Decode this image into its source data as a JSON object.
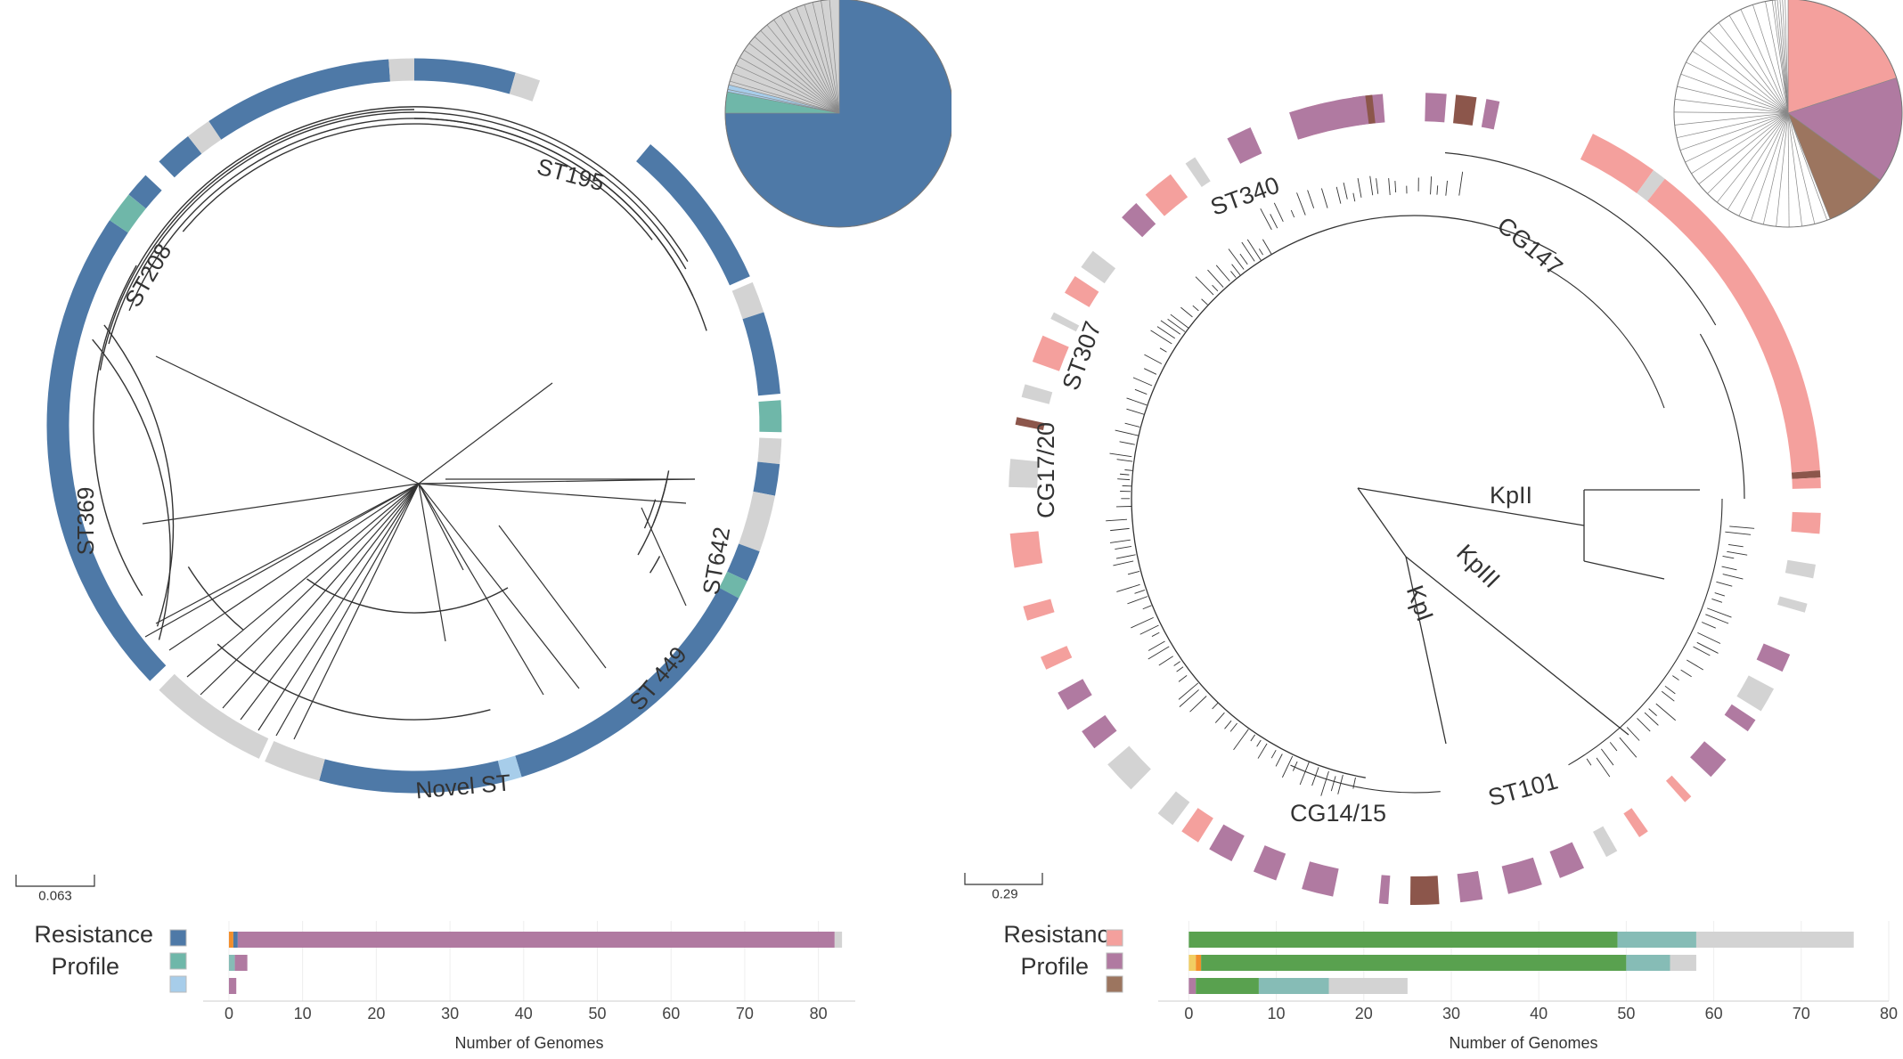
{
  "chart_data": [
    {
      "type": "phylogenetic-tree",
      "clade_labels": [
        "ST195",
        "ST208",
        "ST369",
        "ST642",
        "ST 449",
        "Novel ST"
      ],
      "scale_bar": "0.063",
      "ring_colors": {
        "resistance_1": "#4e79a7",
        "resistance_2": "#6fb7a9",
        "resistance_3": "#a7cdea",
        "none": "#d3d3d3"
      },
      "pie_slices": [
        {
          "color": "#4e79a7",
          "value": 75
        },
        {
          "color": "#6fb7a9",
          "value": 3
        },
        {
          "color": "#a7cdea",
          "value": 1
        },
        {
          "color": "#d3d3d3",
          "value": 21
        }
      ],
      "bar_chart": {
        "type": "bar",
        "legend_title": [
          "Resistance",
          "Profile"
        ],
        "legend_swatches": [
          "#4e79a7",
          "#6fb7a9",
          "#a7cdea"
        ],
        "categories": [
          "#4e79a7",
          "#6fb7a9",
          "#a7cdea"
        ],
        "stack_colors": [
          "#59a14f",
          "#f1ce63",
          "#f28e2b",
          "#86bcb6",
          "#b07aa1",
          "#d3d3d3"
        ],
        "series": [
          {
            "segments": [
              0,
              0,
              0.6,
              0,
              0.6,
              81,
              1
            ]
          },
          {
            "segments": [
              0,
              0,
              0,
              0.8,
              0,
              1.7,
              0
            ]
          },
          {
            "segments": [
              0,
              0,
              0,
              0,
              0,
              1,
              0
            ]
          }
        ],
        "stack_order": [
          "#59a14f",
          "#f1ce63",
          "#f28e2b",
          "#86bcb6",
          "#4e79a7",
          "#b07aa1",
          "#d3d3d3"
        ],
        "xticks": [
          "0",
          "10",
          "20",
          "30",
          "40",
          "50",
          "60",
          "70",
          "80"
        ],
        "xlim": [
          -3.5,
          85
        ],
        "xlabel": "Number of Genomes"
      }
    },
    {
      "type": "phylogenetic-tree",
      "clade_labels": [
        "ST340",
        "CG147",
        "ST307",
        "CG17/20",
        "KpII",
        "KpIII",
        "KpI",
        "ST101",
        "CG14/15"
      ],
      "scale_bar": "0.29",
      "ring_colors": {
        "resistance_1": "#f4a09d",
        "resistance_2": "#b07aa1",
        "resistance_3": "#8c564b",
        "none": "#d3d3d3"
      },
      "pie_slices": [
        {
          "color": "#f4a09d",
          "value": 20
        },
        {
          "color": "#b07aa1",
          "value": 15
        },
        {
          "color": "#9c755f",
          "value": 9
        },
        {
          "color": "#ffffff",
          "value": 56
        }
      ],
      "bar_chart": {
        "type": "bar",
        "legend_title": [
          "Resistance",
          "Profile"
        ],
        "legend_swatches": [
          "#f4a09d",
          "#b07aa1",
          "#9c755f"
        ],
        "categories": [
          "#f4a09d",
          "#b07aa1",
          "#9c755f"
        ],
        "stack_order": [
          "#b07aa1",
          "#f1ce63",
          "#f28e2b",
          "#59a14f",
          "#86bcb6",
          "#d3d3d3"
        ],
        "series": [
          {
            "segments": [
              0,
              0,
              0,
              49,
              9,
              18
            ]
          },
          {
            "segments": [
              0,
              0.8,
              0.6,
              48.6,
              5,
              3
            ]
          },
          {
            "segments": [
              0.8,
              0,
              0,
              7.2,
              8,
              9
            ]
          }
        ],
        "xticks": [
          "0",
          "10",
          "20",
          "30",
          "40",
          "50",
          "60",
          "70",
          "80"
        ],
        "xlim": [
          -3.5,
          80
        ],
        "xlabel": "Number of Genomes"
      }
    }
  ]
}
